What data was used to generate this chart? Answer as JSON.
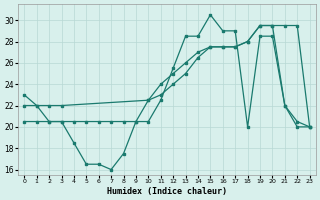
{
  "line1_x": [
    0,
    1,
    2,
    3,
    4,
    5,
    6,
    7,
    8,
    9,
    10,
    11,
    12,
    13,
    14,
    15,
    16,
    17,
    18,
    19,
    20,
    21,
    22,
    23
  ],
  "line1_y": [
    23.0,
    22.0,
    20.5,
    20.5,
    18.5,
    16.5,
    16.5,
    16.0,
    17.5,
    20.5,
    20.5,
    22.5,
    25.5,
    28.5,
    28.5,
    30.5,
    29.0,
    29.0,
    20.0,
    28.5,
    28.5,
    22.0,
    20.5,
    20.0
  ],
  "line2_x": [
    0,
    1,
    2,
    3,
    4,
    5,
    6,
    7,
    8,
    9,
    10,
    11,
    12,
    13,
    14,
    15,
    16,
    17,
    18,
    19,
    20,
    21,
    22,
    23
  ],
  "line2_y": [
    20.5,
    20.5,
    20.5,
    20.5,
    20.5,
    20.5,
    20.5,
    20.5,
    20.5,
    20.5,
    22.5,
    24.0,
    25.0,
    26.0,
    27.0,
    27.5,
    27.5,
    27.5,
    28.0,
    29.5,
    29.5,
    22.0,
    20.0,
    20.0
  ],
  "line3_x": [
    0,
    1,
    2,
    3,
    10,
    11,
    12,
    13,
    14,
    15,
    16,
    17,
    18,
    19,
    20,
    21,
    22,
    23
  ],
  "line3_y": [
    22.0,
    22.0,
    22.0,
    22.0,
    22.5,
    23.0,
    24.0,
    25.0,
    26.5,
    27.5,
    27.5,
    27.5,
    28.0,
    29.5,
    29.5,
    29.5,
    29.5,
    20.0
  ],
  "line_color": "#1a7a6e",
  "bg_color": "#d8f0ec",
  "grid_color": "#b8d8d4",
  "xlabel": "Humidex (Indice chaleur)",
  "xlim": [
    -0.5,
    23.5
  ],
  "ylim": [
    15.5,
    31.5
  ],
  "yticks": [
    16,
    18,
    20,
    22,
    24,
    26,
    28,
    30
  ],
  "xticks": [
    0,
    1,
    2,
    3,
    4,
    5,
    6,
    7,
    8,
    9,
    10,
    11,
    12,
    13,
    14,
    15,
    16,
    17,
    18,
    19,
    20,
    21,
    22,
    23
  ]
}
